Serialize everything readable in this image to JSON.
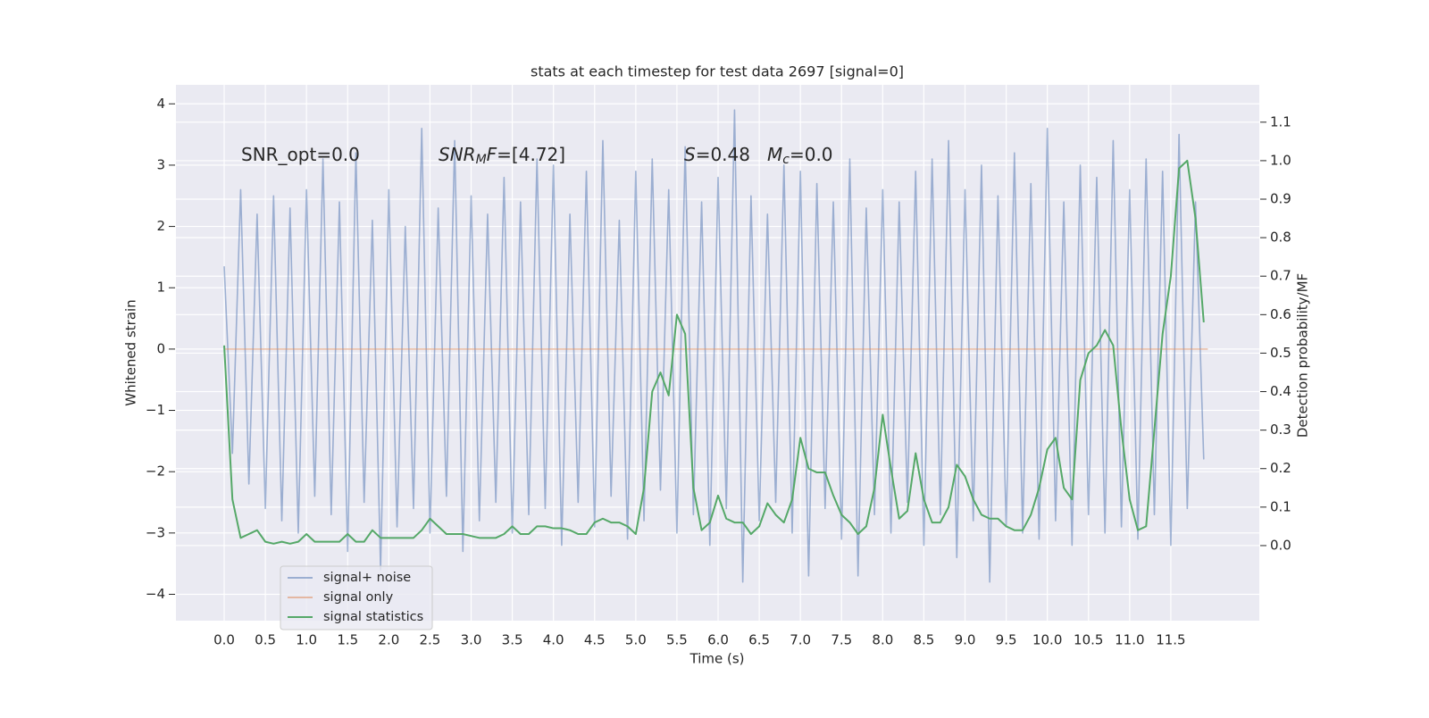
{
  "chart_data": {
    "type": "line",
    "title": "stats at each timestep for test data 2697 [signal=0]",
    "xlabel": "Time (s)",
    "ylabel": "Whitened strain",
    "y2label": "Detection probability/MF",
    "xlim": [
      -0.586,
      12.575
    ],
    "ylim": [
      -4.43,
      4.31
    ],
    "y2lim": [
      -0.195,
      1.197
    ],
    "xticks": [
      {
        "value": 0,
        "label": "0.0"
      },
      {
        "value": 0.5,
        "label": "0.5"
      },
      {
        "value": 1,
        "label": "1.0"
      },
      {
        "value": 1.5,
        "label": "1.5"
      },
      {
        "value": 2,
        "label": "2.0"
      },
      {
        "value": 2.5,
        "label": "2.5"
      },
      {
        "value": 3,
        "label": "3.0"
      },
      {
        "value": 3.5,
        "label": "3.5"
      },
      {
        "value": 4,
        "label": "4.0"
      },
      {
        "value": 4.5,
        "label": "4.5"
      },
      {
        "value": 5,
        "label": "5.0"
      },
      {
        "value": 5.5,
        "label": "5.5"
      },
      {
        "value": 6,
        "label": "6.0"
      },
      {
        "value": 6.5,
        "label": "6.5"
      },
      {
        "value": 7,
        "label": "7.0"
      },
      {
        "value": 7.5,
        "label": "7.5"
      },
      {
        "value": 8,
        "label": "8.0"
      },
      {
        "value": 8.5,
        "label": "8.5"
      },
      {
        "value": 9,
        "label": "9.0"
      },
      {
        "value": 9.5,
        "label": "9.5"
      },
      {
        "value": 10,
        "label": "10.0"
      },
      {
        "value": 10.5,
        "label": "10.5"
      },
      {
        "value": 11,
        "label": "11.0"
      },
      {
        "value": 11.5,
        "label": "11.5"
      }
    ],
    "yticks": [
      4,
      3,
      2,
      1,
      0,
      {
        "value": -1,
        "label": "−1"
      },
      {
        "value": -2,
        "label": "−2"
      },
      {
        "value": -3,
        "label": "−3"
      },
      {
        "value": -4,
        "label": "−4"
      }
    ],
    "y2ticks": [
      {
        "value": 0,
        "label": "0.0"
      },
      {
        "value": 0.1,
        "label": "0.1"
      },
      {
        "value": 0.2,
        "label": "0.2"
      },
      {
        "value": 0.3,
        "label": "0.3"
      },
      {
        "value": 0.4,
        "label": "0.4"
      },
      {
        "value": 0.5,
        "label": "0.5"
      },
      {
        "value": 0.6,
        "label": "0.6"
      },
      {
        "value": 0.7,
        "label": "0.7"
      },
      {
        "value": 0.8,
        "label": "0.8"
      },
      {
        "value": 0.9,
        "label": "0.9"
      },
      {
        "value": 1,
        "label": "1.0"
      },
      {
        "value": 1.1,
        "label": "1.1"
      }
    ],
    "grid": true,
    "legend": "lower left",
    "annotations": [
      [
        {
          "t": "SNR_opt=0.0"
        }
      ],
      [
        {
          "t": "SNR",
          "s": "italic"
        },
        {
          "t": "M",
          "s": "sub"
        },
        {
          "t": "F",
          "s": "italic"
        },
        {
          "t": "=[4.72]"
        }
      ],
      [
        {
          "t": "S",
          "s": "italic"
        },
        {
          "t": "=0.48"
        }
      ],
      [
        {
          "t": "M",
          "s": "italic"
        },
        {
          "t": "c",
          "s": "sub"
        },
        {
          "t": "=0.0"
        }
      ]
    ],
    "x": [
      0,
      0.1,
      0.2,
      0.3,
      0.4,
      0.5,
      0.6,
      0.7,
      0.8,
      0.9,
      1,
      1.1,
      1.2,
      1.3,
      1.4,
      1.5,
      1.6,
      1.7,
      1.8,
      1.9,
      2,
      2.1,
      2.2,
      2.3,
      2.4,
      2.5,
      2.6,
      2.7,
      2.8,
      2.9,
      3,
      3.1,
      3.2,
      3.3,
      3.4,
      3.5,
      3.6,
      3.7,
      3.8,
      3.9,
      4,
      4.1,
      4.2,
      4.3,
      4.4,
      4.5,
      4.6,
      4.7,
      4.8,
      4.9,
      5,
      5.1,
      5.2,
      5.3,
      5.4,
      5.5,
      5.6,
      5.7,
      5.8,
      5.9,
      6,
      6.1,
      6.2,
      6.3,
      6.4,
      6.5,
      6.6,
      6.7,
      6.8,
      6.9,
      7,
      7.1,
      7.2,
      7.3,
      7.4,
      7.5,
      7.6,
      7.7,
      7.8,
      7.9,
      8,
      8.1,
      8.2,
      8.3,
      8.4,
      8.5,
      8.6,
      8.7,
      8.8,
      8.9,
      9,
      9.1,
      9.2,
      9.3,
      9.4,
      9.5,
      9.6,
      9.7,
      9.8,
      9.9,
      10,
      10.1,
      10.2,
      10.3,
      10.4,
      10.5,
      10.6,
      10.7,
      10.8,
      10.9,
      11,
      11.1,
      11.2,
      11.3,
      11.4,
      11.5,
      11.6,
      11.7,
      11.8,
      11.9
    ],
    "series": [
      {
        "name": "signal+ noise",
        "color": "#4c72b0",
        "opacity": 0.5,
        "axis": "y",
        "values": [
          1.35,
          -1.7,
          2.6,
          -2.2,
          2.2,
          -2.6,
          2.5,
          -2.8,
          2.3,
          -3.0,
          2.6,
          -2.4,
          3.1,
          -2.7,
          2.4,
          -3.3,
          3.2,
          -2.5,
          2.1,
          -3.6,
          2.6,
          -2.9,
          2.0,
          -2.6,
          3.6,
          -3.0,
          2.3,
          -2.4,
          3.4,
          -3.3,
          2.5,
          -2.8,
          2.2,
          -2.5,
          2.8,
          -3.0,
          2.4,
          -2.7,
          3.1,
          -2.6,
          3.0,
          -3.2,
          2.2,
          -2.5,
          2.9,
          -2.9,
          3.4,
          -2.4,
          2.1,
          -3.1,
          2.9,
          -2.8,
          3.1,
          -2.3,
          2.6,
          -3.0,
          3.3,
          -2.7,
          2.4,
          -3.2,
          2.8,
          -2.6,
          3.9,
          -3.8,
          2.5,
          -2.8,
          2.2,
          -2.5,
          3.0,
          -3.0,
          2.9,
          -3.7,
          2.7,
          -2.6,
          2.4,
          -3.1,
          3.1,
          -3.7,
          2.3,
          -2.7,
          2.6,
          -3.0,
          2.4,
          -2.5,
          2.9,
          -3.2,
          3.1,
          -2.7,
          3.4,
          -3.4,
          2.6,
          -2.8,
          3.0,
          -3.8,
          2.5,
          -2.9,
          3.2,
          -3.0,
          2.7,
          -3.1,
          3.6,
          -2.8,
          2.4,
          -3.2,
          3.0,
          -2.7,
          2.8,
          -3.0,
          3.4,
          -2.9,
          2.6,
          -3.1,
          3.1,
          -2.7,
          2.9,
          -3.2,
          3.5,
          -2.6,
          2.4,
          -1.8
        ]
      },
      {
        "name": "signal only",
        "color": "#dd8452",
        "opacity": 0.5,
        "axis": "y",
        "x": [
          0,
          11.95
        ],
        "values": [
          0,
          0
        ]
      },
      {
        "name": "signal statistics",
        "color": "#55a868",
        "opacity": 1,
        "axis": "y2",
        "values": [
          0.52,
          0.12,
          0.02,
          0.03,
          0.04,
          0.01,
          0.005,
          0.01,
          0.005,
          0.01,
          0.03,
          0.01,
          0.01,
          0.01,
          0.01,
          0.03,
          0.01,
          0.01,
          0.04,
          0.02,
          0.02,
          0.02,
          0.02,
          0.02,
          0.04,
          0.07,
          0.05,
          0.03,
          0.03,
          0.03,
          0.025,
          0.02,
          0.02,
          0.02,
          0.03,
          0.05,
          0.03,
          0.03,
          0.05,
          0.05,
          0.045,
          0.045,
          0.04,
          0.03,
          0.03,
          0.06,
          0.07,
          0.06,
          0.06,
          0.05,
          0.03,
          0.15,
          0.4,
          0.45,
          0.39,
          0.6,
          0.55,
          0.15,
          0.04,
          0.06,
          0.13,
          0.07,
          0.06,
          0.06,
          0.03,
          0.05,
          0.11,
          0.08,
          0.06,
          0.12,
          0.28,
          0.2,
          0.19,
          0.19,
          0.13,
          0.08,
          0.06,
          0.03,
          0.05,
          0.15,
          0.34,
          0.2,
          0.07,
          0.09,
          0.24,
          0.12,
          0.06,
          0.06,
          0.1,
          0.21,
          0.18,
          0.12,
          0.08,
          0.07,
          0.07,
          0.05,
          0.04,
          0.04,
          0.08,
          0.15,
          0.25,
          0.28,
          0.15,
          0.12,
          0.43,
          0.5,
          0.52,
          0.56,
          0.52,
          0.3,
          0.12,
          0.04,
          0.05,
          0.3,
          0.55,
          0.7,
          0.98,
          1.0,
          0.85,
          0.58
        ]
      }
    ]
  }
}
